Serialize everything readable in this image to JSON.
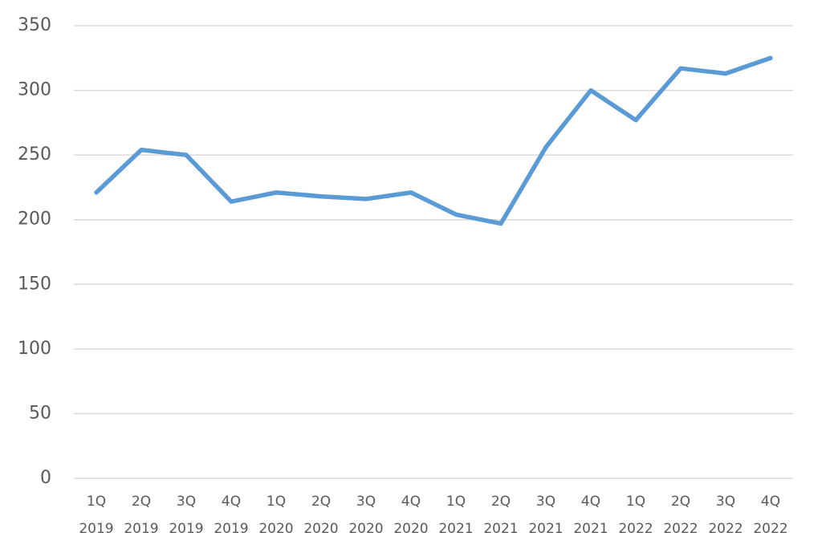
{
  "chart_data": {
    "type": "line",
    "categories": [
      [
        "1Q",
        "2019"
      ],
      [
        "2Q",
        "2019"
      ],
      [
        "3Q",
        "2019"
      ],
      [
        "4Q",
        "2019"
      ],
      [
        "1Q",
        "2020"
      ],
      [
        "2Q",
        "2020"
      ],
      [
        "3Q",
        "2020"
      ],
      [
        "4Q",
        "2020"
      ],
      [
        "1Q",
        "2021"
      ],
      [
        "2Q",
        "2021"
      ],
      [
        "3Q",
        "2021"
      ],
      [
        "4Q",
        "2021"
      ],
      [
        "1Q",
        "2022"
      ],
      [
        "2Q",
        "2022"
      ],
      [
        "3Q",
        "2022"
      ],
      [
        "4Q",
        "2022"
      ]
    ],
    "values": [
      221,
      254,
      250,
      214,
      221,
      218,
      216,
      221,
      204,
      197,
      256,
      300,
      277,
      317,
      313,
      325
    ],
    "color": "#5b9bd5",
    "ylim": [
      0,
      350
    ],
    "yticks": [
      0,
      50,
      100,
      150,
      200,
      250,
      300,
      350
    ],
    "grid": true
  }
}
